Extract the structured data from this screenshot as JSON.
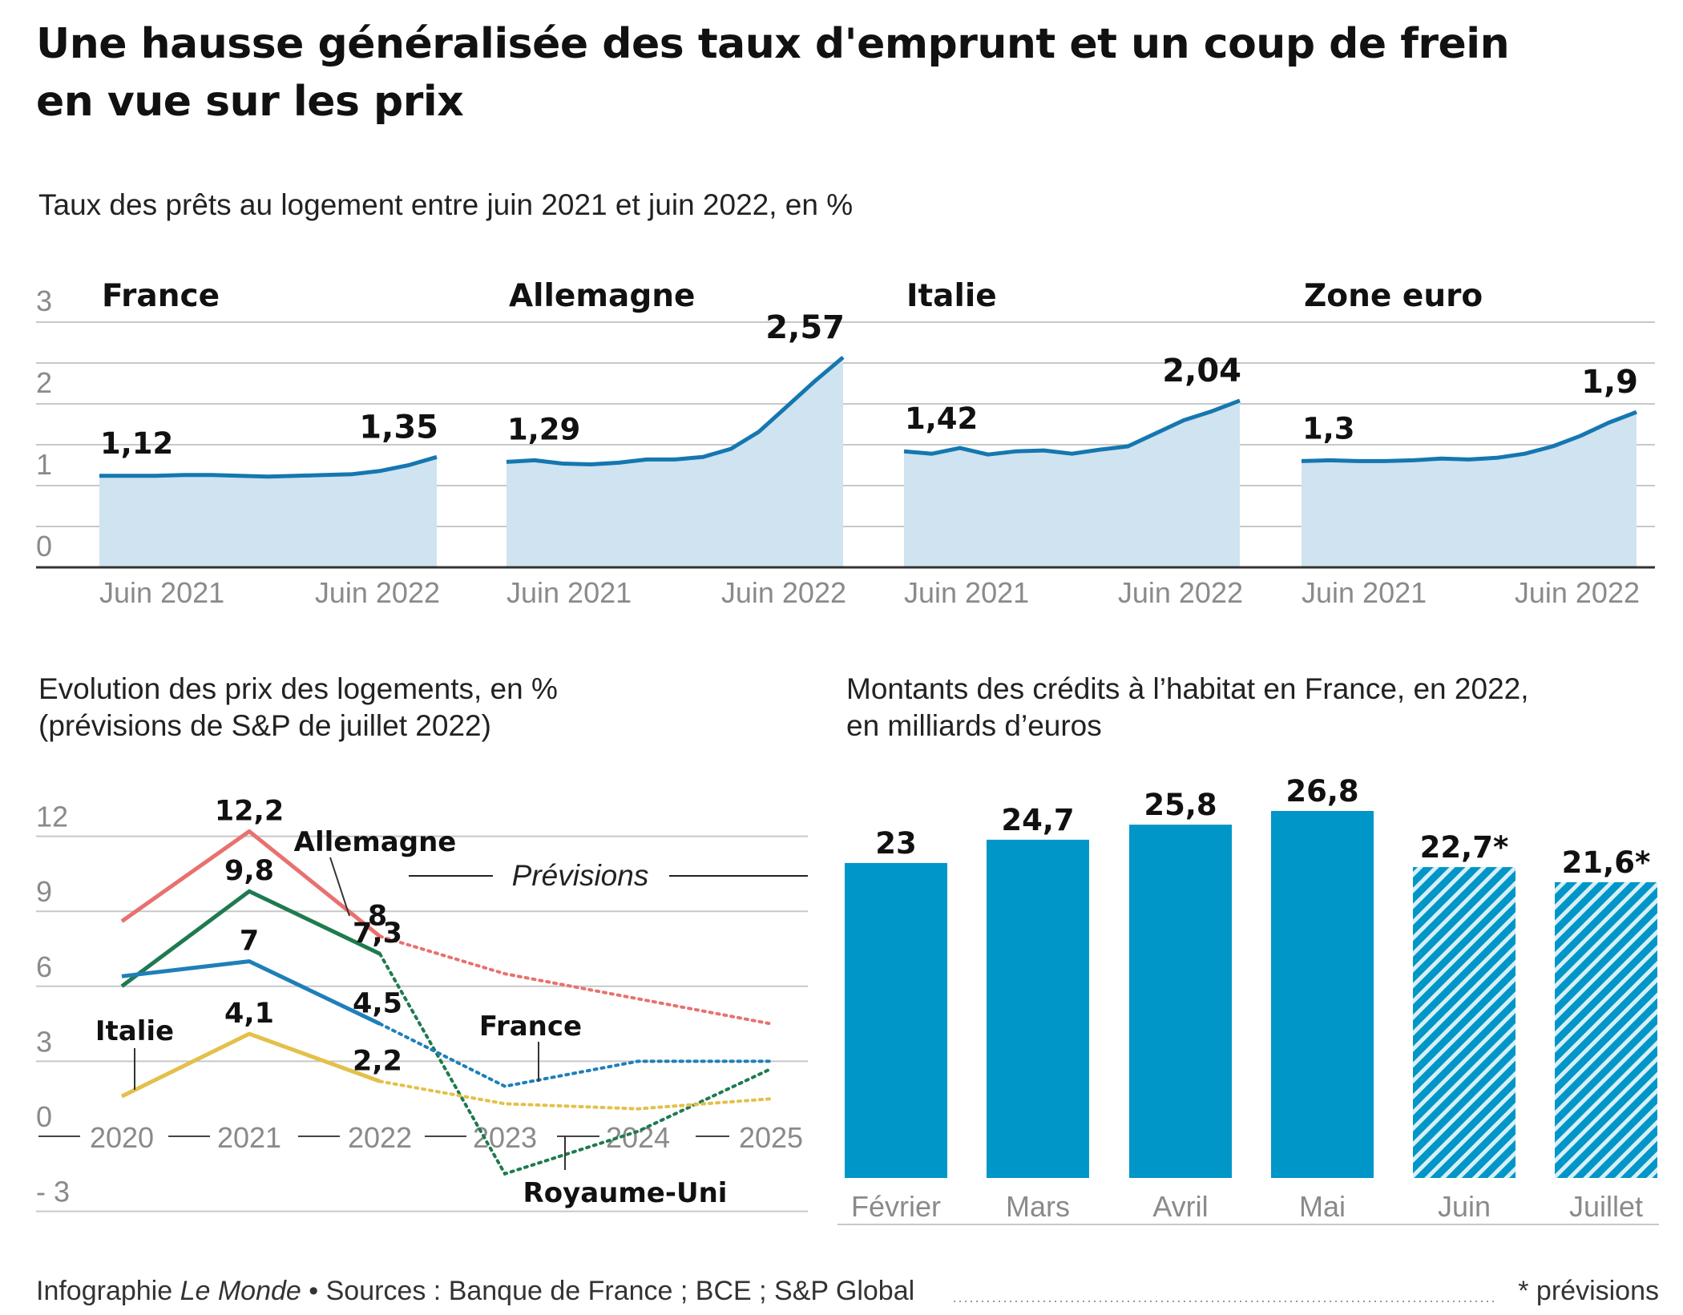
{
  "title_line1": "Une hausse généralisée des taux d'emprunt et un coup de frein",
  "title_line2": "en vue sur les prix",
  "footer": {
    "credit_prefix": "Infographie ",
    "credit_publication": "Le Monde",
    "sources": " • Sources : Banque de France ; BCE ; S&P Global",
    "note": "* prévisions"
  },
  "colors": {
    "area_fill": "#cfe3f1",
    "area_line": "#1577b0",
    "grid": "#c8c8c8",
    "axis": "#333333",
    "bar": "#0096c8",
    "allemagne": "#e8716f",
    "royaume_uni": "#1f7a4f",
    "france": "#1f7fb8",
    "italie": "#e3c04a"
  },
  "chart_data": [
    {
      "type": "area",
      "subtitle": "Taux des prêts au logement entre juin 2021 et juin 2022, en %",
      "ylim": [
        0,
        3
      ],
      "y_ticks": [
        "0",
        "1",
        "2",
        "3"
      ],
      "x_tick_labels": [
        "Juin 2021",
        "Juin 2022"
      ],
      "grid": true,
      "panels": [
        {
          "name": "France",
          "start_label": "1,12",
          "end_label": "1,35",
          "values": [
            1.12,
            1.12,
            1.12,
            1.13,
            1.13,
            1.12,
            1.11,
            1.12,
            1.13,
            1.14,
            1.18,
            1.25,
            1.35
          ]
        },
        {
          "name": "Allemagne",
          "start_label": "1,29",
          "end_label": "2,57",
          "values": [
            1.29,
            1.31,
            1.27,
            1.26,
            1.28,
            1.32,
            1.32,
            1.35,
            1.45,
            1.66,
            1.97,
            2.28,
            2.57
          ]
        },
        {
          "name": "Italie",
          "start_label": "1,42",
          "end_label": "2,04",
          "values": [
            1.42,
            1.39,
            1.46,
            1.38,
            1.42,
            1.43,
            1.39,
            1.44,
            1.48,
            1.64,
            1.8,
            1.91,
            2.04
          ]
        },
        {
          "name": "Zone euro",
          "start_label": "1,3",
          "end_label": "1,9",
          "values": [
            1.3,
            1.31,
            1.3,
            1.3,
            1.31,
            1.33,
            1.32,
            1.34,
            1.39,
            1.48,
            1.61,
            1.77,
            1.9
          ]
        }
      ]
    },
    {
      "type": "line",
      "subtitle_line1": "Evolution des prix des logements, en %",
      "subtitle_line2": "(prévisions de S&P de juillet 2022)",
      "x": [
        "2020",
        "2021",
        "2022",
        "2023",
        "2024",
        "2025"
      ],
      "ylim": [
        -3,
        12
      ],
      "y_ticks": [
        "- 3",
        "0",
        "3",
        "6",
        "9",
        "12"
      ],
      "forecast_label": "Prévisions",
      "forecast_from": "2022",
      "series": [
        {
          "name": "Allemagne",
          "color_key": "allemagne",
          "values": [
            8.6,
            12.2,
            8,
            6.5,
            5.5,
            4.5
          ],
          "labels": {
            "2021": "12,2",
            "2022": "8"
          }
        },
        {
          "name": "Royaume-Uni",
          "color_key": "royaume_uni",
          "values": [
            6,
            9.8,
            7.3,
            -1.5,
            0.2,
            2.7
          ],
          "labels": {
            "2021": "9,8",
            "2022": "7,3"
          }
        },
        {
          "name": "France",
          "color_key": "france",
          "values": [
            6.4,
            7,
            4.5,
            2,
            3,
            3
          ],
          "labels": {
            "2021": "7",
            "2022": "4,5"
          }
        },
        {
          "name": "Italie",
          "color_key": "italie",
          "values": [
            1.6,
            4.1,
            2.2,
            1.3,
            1.1,
            1.5
          ],
          "labels": {
            "2021": "4,1",
            "2022": "2,2"
          }
        }
      ]
    },
    {
      "type": "bar",
      "subtitle_line1": "Montants des crédits à l’habitat en France, en 2022,",
      "subtitle_line2": "en milliards d’euros",
      "categories": [
        "Février",
        "Mars",
        "Avril",
        "Mai",
        "Juin",
        "Juillet"
      ],
      "values": [
        23,
        24.7,
        25.8,
        26.8,
        22.7,
        21.6
      ],
      "value_labels": [
        "23",
        "24,7",
        "25,8",
        "26,8",
        "22,7*",
        "21,6*"
      ],
      "forecast": [
        false,
        false,
        false,
        false,
        true,
        true
      ],
      "ylim": [
        0,
        28
      ]
    }
  ]
}
